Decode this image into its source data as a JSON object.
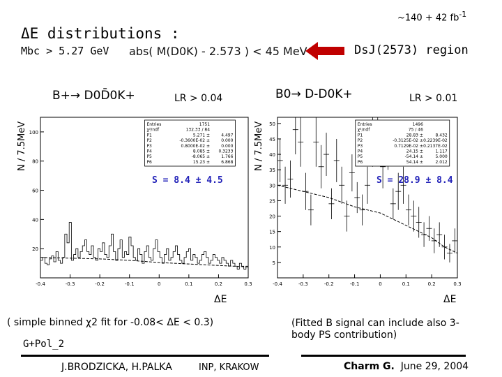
{
  "header": {
    "title": "ΔE distributions :",
    "luminosity": "~140 + 42 fb",
    "luminosity_sup": "-1",
    "cut_mbc": "Mbc > 5.27 GeV",
    "cut_mass": "abs( M(D0K) - 2.573 ) < 45 MeV",
    "region": "DsJ(2573)  region",
    "arrow_color": "#c00000"
  },
  "left_panel": {
    "channel": "B+→ D0D̄0K+",
    "lr_cut": "LR > 0.04",
    "ylabel": "N / 7.5MeV",
    "xlabel": "ΔE",
    "signal": "S  =  8.4   ±  4.5"
  },
  "right_panel": {
    "channel": "B0→ D-D0K+",
    "lr_cut": "LR > 0.01",
    "ylabel": "N / 7.5MeV",
    "xlabel": "ΔE",
    "signal": "S  =  28.9   ±  8.4"
  },
  "chart_data": [
    {
      "type": "bar",
      "xlim": [
        -0.4,
        0.3
      ],
      "ylim": [
        0,
        110
      ],
      "x_ticks": [
        "-0.4",
        "-0.3",
        "-0.2",
        "-0.1",
        "0",
        "0.1",
        "0.2",
        "0.3"
      ],
      "y_ticks": [
        "20",
        "40",
        "60",
        "80",
        "100"
      ],
      "bin_width": 0.0075,
      "stats": [
        {
          "name": "Entries",
          "value": "1751"
        },
        {
          "name": "χ²/ndf",
          "value": "132.33 / 84"
        },
        {
          "name": "P1",
          "value": "5.271 ±",
          "err": "4.497"
        },
        {
          "name": "P2",
          "value": "-0.3600E-02 ±",
          "err": "0.000"
        },
        {
          "name": "P3",
          "value": "0.8000E-02 ±",
          "err": "0.000"
        },
        {
          "name": "P4",
          "value": "8.085 ±",
          "err": "0.3233"
        },
        {
          "name": "P5",
          "value": "-8.065 ±",
          "err": "1.766"
        },
        {
          "name": "P6",
          "value": "15.23 ±",
          "err": "6.868"
        }
      ],
      "fit_curve": {
        "x": [
          -0.4,
          -0.3,
          -0.2,
          -0.1,
          0,
          0.1,
          0.2,
          0.3
        ],
        "y": [
          14,
          13.5,
          13,
          12,
          10.5,
          9.5,
          8.5,
          7.5
        ]
      },
      "series": [
        {
          "name": "",
          "x_range": [
            -0.4,
            0.3
          ],
          "values": [
            12,
            14,
            10,
            9,
            13,
            15,
            11,
            18,
            12,
            10,
            14,
            30,
            24,
            38,
            12,
            16,
            20,
            14,
            18,
            22,
            26,
            18,
            16,
            22,
            14,
            12,
            20,
            18,
            24,
            16,
            14,
            22,
            30,
            18,
            12,
            20,
            26,
            14,
            18,
            16,
            28,
            22,
            14,
            12,
            20,
            16,
            10,
            18,
            22,
            14,
            12,
            20,
            26,
            18,
            14,
            10,
            16,
            20,
            12,
            14,
            18,
            22,
            16,
            12,
            10,
            14,
            18,
            20,
            12,
            16,
            14,
            10,
            12,
            16,
            18,
            14,
            10,
            12,
            16,
            14,
            12,
            10,
            14,
            12,
            10,
            8,
            12,
            10,
            8,
            6,
            10,
            8,
            6,
            8
          ]
        }
      ]
    },
    {
      "type": "scatter",
      "xlim": [
        -0.4,
        0.3
      ],
      "ylim": [
        0,
        52
      ],
      "x_ticks": [
        "-0.4",
        "-0.3",
        "-0.2",
        "-0.1",
        "0",
        "0.1",
        "0.2",
        "0.3"
      ],
      "y_ticks": [
        "5",
        "10",
        "15",
        "20",
        "25",
        "30",
        "35",
        "40",
        "45",
        "50"
      ],
      "stats": [
        {
          "name": "Entries",
          "value": "1496"
        },
        {
          "name": "χ²/ndf",
          "value": "75 / 46"
        },
        {
          "name": "P1",
          "value": "28.83 ±",
          "err": "8.432"
        },
        {
          "name": "P2",
          "value": "-0.3125E-02 ±",
          "err": "0.2239E-02"
        },
        {
          "name": "P3",
          "value": "0.7129E-02 ±",
          "err": "0.2137E-02"
        },
        {
          "name": "P4",
          "value": "24.15 ±",
          "err": "1.117"
        },
        {
          "name": "P5",
          "value": "-54.14 ±",
          "err": "5.000"
        },
        {
          "name": "P6",
          "value": "54.14 ±",
          "err": "2.012"
        }
      ],
      "fit_curve": {
        "x": [
          -0.4,
          -0.3,
          -0.2,
          -0.1,
          0,
          0.1,
          0.15,
          0.2,
          0.25,
          0.3
        ],
        "y": [
          30,
          28,
          26,
          23,
          21,
          17,
          15,
          13,
          10,
          8
        ]
      },
      "series": [
        {
          "name": "",
          "x": [
            -0.39,
            -0.37,
            -0.35,
            -0.33,
            -0.31,
            -0.29,
            -0.27,
            -0.25,
            -0.23,
            -0.21,
            -0.19,
            -0.17,
            -0.15,
            -0.13,
            -0.11,
            -0.09,
            -0.07,
            -0.05,
            -0.03,
            -0.01,
            0.01,
            0.03,
            0.05,
            0.07,
            0.09,
            0.11,
            0.13,
            0.15,
            0.17,
            0.19,
            0.21,
            0.23,
            0.25,
            0.27,
            0.29
          ],
          "y": [
            38,
            30,
            32,
            48,
            44,
            28,
            22,
            44,
            36,
            40,
            24,
            38,
            30,
            20,
            34,
            26,
            22,
            30,
            44,
            52,
            36,
            42,
            24,
            28,
            30,
            22,
            20,
            18,
            14,
            16,
            12,
            14,
            10,
            8,
            12
          ],
          "err": [
            7,
            6,
            6,
            8,
            8,
            6,
            5,
            8,
            7,
            7,
            5,
            7,
            6,
            5,
            6,
            5,
            5,
            6,
            8,
            8,
            7,
            7,
            5,
            6,
            6,
            5,
            5,
            5,
            4,
            4,
            4,
            4,
            4,
            3,
            4
          ]
        }
      ]
    }
  ],
  "footer": {
    "note_left": "( simple binned  χ2  fit for  -0.08<  ΔE  < 0.3)",
    "note_pol": "G+Pol_2",
    "note_right": "(Fitted B signal can include also 3-body PS contribution)",
    "authors": "J.BRODZICKA, H.PALKA",
    "institute": "INP,  KRAKOW",
    "conference": "Charm G.",
    "date": "June 29, 2004",
    "rule_color": "#000000"
  }
}
